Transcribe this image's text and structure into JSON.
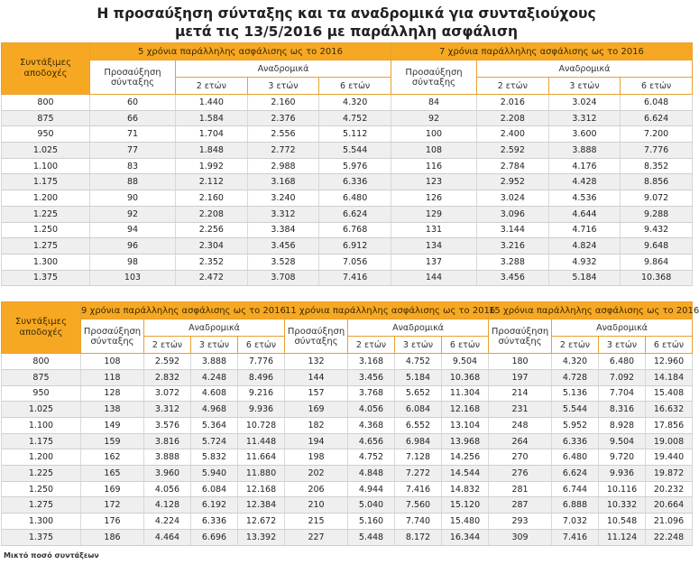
{
  "header": {
    "title_line1": "Η προσαύξηση σύνταξης και τα αναδρομικά για συνταξιούχους",
    "title_line2": "μετά τις 13/5/2016 με παράλληλη ασφάλιση"
  },
  "tables": [
    {
      "row_header": "Συντάξιμες αποδοχές",
      "groups": [
        {
          "title": "5 χρόνια παράλληλης ασφάλισης ως το 2016",
          "increase": "Προσαύξηση σύνταξης",
          "retro": "Αναδρομικά",
          "periods": [
            "2 ετών",
            "3 ετών",
            "6 ετών"
          ]
        },
        {
          "title": "7 χρόνια παράλληλης ασφάλισης ως το 2016",
          "increase": "Προσαύξηση σύνταξης",
          "retro": "Αναδρομικά",
          "periods": [
            "2 ετών",
            "3 ετών",
            "6 ετών"
          ]
        }
      ],
      "rows": [
        [
          "800",
          "60",
          "1.440",
          "2.160",
          "4.320",
          "84",
          "2.016",
          "3.024",
          "6.048"
        ],
        [
          "875",
          "66",
          "1.584",
          "2.376",
          "4.752",
          "92",
          "2.208",
          "3.312",
          "6.624"
        ],
        [
          "950",
          "71",
          "1.704",
          "2.556",
          "5.112",
          "100",
          "2.400",
          "3.600",
          "7.200"
        ],
        [
          "1.025",
          "77",
          "1.848",
          "2.772",
          "5.544",
          "108",
          "2.592",
          "3.888",
          "7.776"
        ],
        [
          "1.100",
          "83",
          "1.992",
          "2.988",
          "5.976",
          "116",
          "2.784",
          "4.176",
          "8.352"
        ],
        [
          "1.175",
          "88",
          "2.112",
          "3.168",
          "6.336",
          "123",
          "2.952",
          "4.428",
          "8.856"
        ],
        [
          "1.200",
          "90",
          "2.160",
          "3.240",
          "6.480",
          "126",
          "3.024",
          "4.536",
          "9.072"
        ],
        [
          "1.225",
          "92",
          "2.208",
          "3.312",
          "6.624",
          "129",
          "3.096",
          "4.644",
          "9.288"
        ],
        [
          "1.250",
          "94",
          "2.256",
          "3.384",
          "6.768",
          "131",
          "3.144",
          "4.716",
          "9.432"
        ],
        [
          "1.275",
          "96",
          "2.304",
          "3.456",
          "6.912",
          "134",
          "3.216",
          "4.824",
          "9.648"
        ],
        [
          "1.300",
          "98",
          "2.352",
          "3.528",
          "7.056",
          "137",
          "3.288",
          "4.932",
          "9.864"
        ],
        [
          "1.375",
          "103",
          "2.472",
          "3.708",
          "7.416",
          "144",
          "3.456",
          "5.184",
          "10.368"
        ]
      ]
    },
    {
      "row_header": "Συντάξιμες αποδοχές",
      "groups": [
        {
          "title": "9 χρόνια παράλληλης ασφάλισης ως το 2016",
          "increase": "Προσαύξηση σύνταξης",
          "retro": "Αναδρομικά",
          "periods": [
            "2 ετών",
            "3 ετών",
            "6 ετών"
          ]
        },
        {
          "title": "11 χρόνια παράλληλης ασφάλισης ως το 2016",
          "increase": "Προσαύξηση σύνταξης",
          "retro": "Αναδρομικά",
          "periods": [
            "2 ετών",
            "3 ετών",
            "6 ετών"
          ]
        },
        {
          "title": "15 χρόνια παράλληλης ασφάλισης ως το 2016",
          "increase": "Προσαύξηση σύνταξης",
          "retro": "Αναδρομικά",
          "periods": [
            "2 ετών",
            "3 ετών",
            "6 ετών"
          ]
        }
      ],
      "rows": [
        [
          "800",
          "108",
          "2.592",
          "3.888",
          "7.776",
          "132",
          "3.168",
          "4.752",
          "9.504",
          "180",
          "4.320",
          "6.480",
          "12.960"
        ],
        [
          "875",
          "118",
          "2.832",
          "4.248",
          "8.496",
          "144",
          "3.456",
          "5.184",
          "10.368",
          "197",
          "4.728",
          "7.092",
          "14.184"
        ],
        [
          "950",
          "128",
          "3.072",
          "4.608",
          "9.216",
          "157",
          "3.768",
          "5.652",
          "11.304",
          "214",
          "5.136",
          "7.704",
          "15.408"
        ],
        [
          "1.025",
          "138",
          "3.312",
          "4.968",
          "9.936",
          "169",
          "4.056",
          "6.084",
          "12.168",
          "231",
          "5.544",
          "8.316",
          "16.632"
        ],
        [
          "1.100",
          "149",
          "3.576",
          "5.364",
          "10.728",
          "182",
          "4.368",
          "6.552",
          "13.104",
          "248",
          "5.952",
          "8.928",
          "17.856"
        ],
        [
          "1.175",
          "159",
          "3.816",
          "5.724",
          "11.448",
          "194",
          "4.656",
          "6.984",
          "13.968",
          "264",
          "6.336",
          "9.504",
          "19.008"
        ],
        [
          "1.200",
          "162",
          "3.888",
          "5.832",
          "11.664",
          "198",
          "4.752",
          "7.128",
          "14.256",
          "270",
          "6.480",
          "9.720",
          "19.440"
        ],
        [
          "1.225",
          "165",
          "3.960",
          "5.940",
          "11.880",
          "202",
          "4.848",
          "7.272",
          "14.544",
          "276",
          "6.624",
          "9.936",
          "19.872"
        ],
        [
          "1.250",
          "169",
          "4.056",
          "6.084",
          "12.168",
          "206",
          "4.944",
          "7.416",
          "14.832",
          "281",
          "6.744",
          "10.116",
          "20.232"
        ],
        [
          "1.275",
          "172",
          "4.128",
          "6.192",
          "12.384",
          "210",
          "5.040",
          "7.560",
          "15.120",
          "287",
          "6.888",
          "10.332",
          "20.664"
        ],
        [
          "1.300",
          "176",
          "4.224",
          "6.336",
          "12.672",
          "215",
          "5.160",
          "7.740",
          "15.480",
          "293",
          "7.032",
          "10.548",
          "21.096"
        ],
        [
          "1.375",
          "186",
          "4.464",
          "6.696",
          "13.392",
          "227",
          "5.448",
          "8.172",
          "16.344",
          "309",
          "7.416",
          "11.124",
          "22.248"
        ]
      ]
    }
  ],
  "footer": "Μικτό ποσό συντάξεων"
}
